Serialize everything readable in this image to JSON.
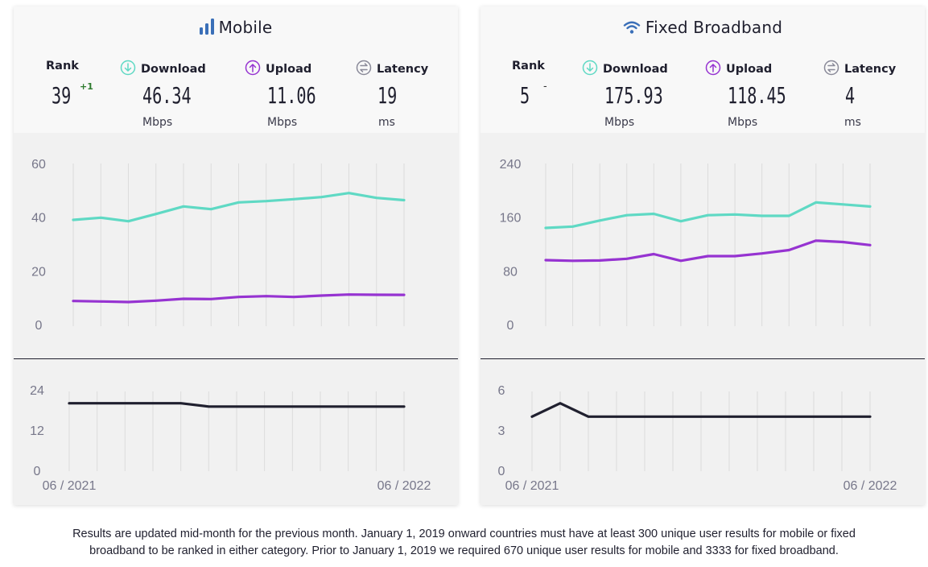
{
  "colors": {
    "download": "#5fd9c4",
    "upload": "#9633d1",
    "latency": "#20202f",
    "mobile_icon": "#3a6fb8",
    "gridline": "#dcdcdc"
  },
  "mobile": {
    "title": "Mobile",
    "icon": "signal-bars-icon",
    "rank": {
      "label": "Rank",
      "value": "39",
      "delta": "+1"
    },
    "download": {
      "label": "Download",
      "value": "46.34",
      "unit": "Mbps",
      "icon": "download-arrow-icon"
    },
    "upload": {
      "label": "Upload",
      "value": "11.06",
      "unit": "Mbps",
      "icon": "upload-arrow-icon"
    },
    "latency": {
      "label": "Latency",
      "value": "19",
      "unit": "ms",
      "icon": "latency-arrows-icon"
    },
    "x_start": "06 / 2021",
    "x_end": "06 / 2022"
  },
  "fixed": {
    "title": "Fixed Broadband",
    "icon": "wifi-icon",
    "rank": {
      "label": "Rank",
      "value": "5",
      "delta": "-"
    },
    "download": {
      "label": "Download",
      "value": "175.93",
      "unit": "Mbps",
      "icon": "download-arrow-icon"
    },
    "upload": {
      "label": "Upload",
      "value": "118.45",
      "unit": "Mbps",
      "icon": "upload-arrow-icon"
    },
    "latency": {
      "label": "Latency",
      "value": "4",
      "unit": "ms",
      "icon": "latency-arrows-icon"
    },
    "x_start": "06 / 2021",
    "x_end": "06 / 2022"
  },
  "chart_data": [
    {
      "type": "line",
      "panel": "mobile-speed",
      "x": [
        "06 / 2021",
        "07 / 2021",
        "08 / 2021",
        "09 / 2021",
        "10 / 2021",
        "11 / 2021",
        "12 / 2021",
        "01 / 2022",
        "02 / 2022",
        "03 / 2022",
        "04 / 2022",
        "05 / 2022",
        "06 / 2022"
      ],
      "ylim": [
        0,
        60
      ],
      "yticks": [
        "0",
        "20",
        "40",
        "60"
      ],
      "grid": true,
      "series": [
        {
          "key": "download",
          "values": [
            39.0,
            39.8,
            38.5,
            41.2,
            44.0,
            43.0,
            45.5,
            46.0,
            46.7,
            47.5,
            49.0,
            47.2,
            46.34
          ]
        },
        {
          "key": "upload",
          "values": [
            8.8,
            8.6,
            8.4,
            8.9,
            9.6,
            9.5,
            10.3,
            10.6,
            10.3,
            10.8,
            11.2,
            11.1,
            11.06
          ]
        }
      ]
    },
    {
      "type": "line",
      "panel": "mobile-latency",
      "x": [
        "06 / 2021",
        "07 / 2021",
        "08 / 2021",
        "09 / 2021",
        "10 / 2021",
        "11 / 2021",
        "12 / 2021",
        "01 / 2022",
        "02 / 2022",
        "03 / 2022",
        "04 / 2022",
        "05 / 2022",
        "06 / 2022"
      ],
      "ylim": [
        0,
        24
      ],
      "yticks": [
        "0",
        "12",
        "24"
      ],
      "grid": true,
      "series": [
        {
          "key": "latency",
          "values": [
            20,
            20,
            20,
            20,
            20,
            19,
            19,
            19,
            19,
            19,
            19,
            19,
            19
          ]
        }
      ]
    },
    {
      "type": "line",
      "panel": "fixed-speed",
      "x": [
        "06 / 2021",
        "07 / 2021",
        "08 / 2021",
        "09 / 2021",
        "10 / 2021",
        "11 / 2021",
        "12 / 2021",
        "01 / 2022",
        "02 / 2022",
        "03 / 2022",
        "04 / 2022",
        "05 / 2022",
        "06 / 2022"
      ],
      "ylim": [
        0,
        240
      ],
      "yticks": [
        "0",
        "80",
        "160",
        "240"
      ],
      "grid": true,
      "series": [
        {
          "key": "download",
          "values": [
            144,
            146,
            155,
            163,
            165,
            154,
            163,
            164,
            162,
            162,
            182,
            179,
            175.93
          ]
        },
        {
          "key": "upload",
          "values": [
            96,
            95,
            95.5,
            98,
            105,
            95,
            102,
            102,
            106,
            111,
            125,
            123,
            118.45
          ]
        }
      ]
    },
    {
      "type": "line",
      "panel": "fixed-latency",
      "x": [
        "06 / 2021",
        "07 / 2021",
        "08 / 2021",
        "09 / 2021",
        "10 / 2021",
        "11 / 2021",
        "12 / 2021",
        "01 / 2022",
        "02 / 2022",
        "03 / 2022",
        "04 / 2022",
        "05 / 2022",
        "06 / 2022"
      ],
      "ylim": [
        0,
        6
      ],
      "yticks": [
        "0",
        "3",
        "6"
      ],
      "grid": true,
      "series": [
        {
          "key": "latency",
          "values": [
            4,
            5,
            4,
            4,
            4,
            4,
            4,
            4,
            4,
            4,
            4,
            4,
            4
          ]
        }
      ]
    }
  ],
  "footnote": {
    "line1": "Results are updated mid-month for the previous month. January 1, 2019 onward countries must have at least 300 unique user results for mobile or fixed",
    "line2": "broadband to be ranked in either category. Prior to January 1, 2019 we required 670 unique user results for mobile and 3333 for fixed broadband."
  }
}
